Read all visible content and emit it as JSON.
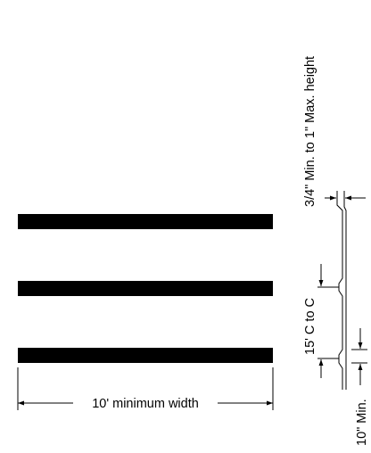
{
  "labels": {
    "height_spec": "3/4\" Min. to 1\" Max. height",
    "spacing": "15' C to C",
    "min_depth": "10\" Min.",
    "width": "10' minimum width"
  },
  "stripes": [
    {
      "name": "stripe-top"
    },
    {
      "name": "stripe-middle"
    },
    {
      "name": "stripe-bottom"
    }
  ],
  "colors": {
    "ink": "#000000",
    "background": "#ffffff"
  }
}
